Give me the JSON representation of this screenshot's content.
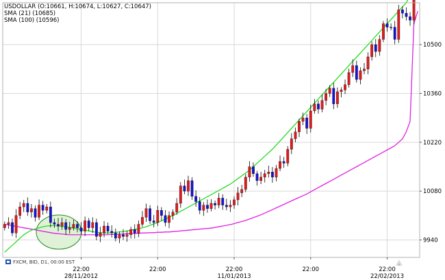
{
  "colors": {
    "up_candle": "#1414d2",
    "down_candle": "#e01b1b",
    "wick": "#000000",
    "sma21": "#22dd22",
    "sma100": "#e020e0",
    "grid": "#d8d8d8",
    "highlight_fill": "#dff2d8",
    "highlight_stroke": "#228822"
  },
  "header": {
    "line1": "USDOLLAR (O:10661, H:10674, L:10627, C:10647)",
    "line2": "SMA (21) (10685)",
    "line3": "SMA (100) (10596)"
  },
  "footer": {
    "text": "FXCM, BID, D1, 00:00 EST",
    "icon_name": "fxcm-logo-icon",
    "corner_icon_name": "chart-logo-icon"
  },
  "chart_data": {
    "type": "candlestick",
    "grid": true,
    "y_axis_position": "right",
    "ylim": [
      9890,
      10620
    ],
    "y_ticks": [
      9940,
      10080,
      10220,
      10360,
      10500
    ],
    "y_tick_labels": [
      "9940",
      "10080",
      "10220",
      "10360",
      "10500"
    ],
    "x_tick_slots": [
      20,
      40,
      60,
      80,
      100
    ],
    "x_tick_labels": [
      [
        "22:00",
        "28/11/2012"
      ],
      [
        "22:00",
        ""
      ],
      [
        "22:00",
        "11/01/2013"
      ],
      [
        "22:00",
        ""
      ],
      [
        "22:00",
        "22/02/2013"
      ]
    ],
    "candles_close": [
      9975,
      9985,
      9990,
      9960,
      10010,
      10035,
      10045,
      10020,
      10030,
      10005,
      10040,
      10025,
      10035,
      9990,
      9985,
      9980,
      9990,
      9970,
      9975,
      9985,
      9975,
      9965,
      9995,
      9975,
      9990,
      9950,
      9960,
      9980,
      9965,
      9960,
      9945,
      9955,
      9950,
      9955,
      9970,
      9960,
      9985,
      10005,
      10030,
      9995,
      9990,
      10025,
      10010,
      9990,
      10010,
      10020,
      10045,
      10095,
      10080,
      10110,
      10065,
      10050,
      10025,
      10040,
      10030,
      10045,
      10040,
      10060,
      10040,
      10035,
      10040,
      10055,
      10075,
      10085,
      10120,
      10150,
      10130,
      10110,
      10120,
      10130,
      10135,
      10120,
      10145,
      10165,
      10160,
      10200,
      10230,
      10250,
      10280,
      10290,
      10260,
      10310,
      10330,
      10315,
      10340,
      10360,
      10375,
      10330,
      10365,
      10370,
      10385,
      10420,
      10440,
      10400,
      10425,
      10430,
      10465,
      10500,
      10480,
      10515,
      10560,
      10550,
      10550,
      10515,
      10600,
      10590,
      10580,
      10570,
      10647
    ],
    "candles_open": [
      9985,
      9990,
      9960,
      10010,
      10035,
      10045,
      10020,
      10030,
      10005,
      10040,
      10025,
      10035,
      9990,
      9985,
      9980,
      9990,
      9970,
      9975,
      9985,
      9975,
      9965,
      9995,
      9975,
      9990,
      9950,
      9960,
      9980,
      9965,
      9960,
      9945,
      9955,
      9950,
      9955,
      9970,
      9960,
      9985,
      10005,
      10030,
      9995,
      9990,
      10025,
      10010,
      9990,
      10010,
      10020,
      10045,
      10095,
      10080,
      10110,
      10065,
      10050,
      10025,
      10040,
      10030,
      10045,
      10040,
      10060,
      10040,
      10035,
      10040,
      10055,
      10075,
      10085,
      10120,
      10150,
      10130,
      10110,
      10120,
      10130,
      10135,
      10120,
      10145,
      10165,
      10160,
      10200,
      10230,
      10250,
      10280,
      10290,
      10260,
      10310,
      10330,
      10315,
      10340,
      10360,
      10375,
      10330,
      10365,
      10370,
      10385,
      10420,
      10440,
      10400,
      10425,
      10430,
      10465,
      10500,
      10480,
      10515,
      10560,
      10550,
      10550,
      10515,
      10600,
      10590,
      10580,
      10570,
      10661,
      10661
    ],
    "sma21": [
      9905,
      9915,
      9925,
      9935,
      9945,
      9955,
      9962,
      9968,
      9972,
      9975,
      9978,
      9980,
      9981,
      9981,
      9980,
      9979,
      9978,
      9976,
      9974,
      9972,
      9970,
      9968,
      9966,
      9964,
      9962,
      9961,
      9960,
      9960,
      9961,
      9962,
      9963,
      9964,
      9966,
      9968,
      9970,
      9972,
      9975,
      9978,
      9982,
      9986,
      9990,
      9995,
      10000,
      10005,
      10010,
      10016,
      10022,
      10028,
      10034,
      10040,
      10046,
      10052,
      10058,
      10064,
      10070,
      10076,
      10082,
      10088,
      10094,
      10100,
      10108,
      10116,
      10124,
      10132,
      10140,
      10150,
      10160,
      10170,
      10180,
      10190,
      10200,
      10212,
      10224,
      10236,
      10248,
      10260,
      10272,
      10284,
      10296,
      10308,
      10320,
      10332,
      10344,
      10356,
      10368,
      10380,
      10392,
      10404,
      10416,
      10428,
      10440,
      10452,
      10464,
      10476,
      10488,
      10500,
      10512,
      10524,
      10536,
      10548,
      10560,
      10572,
      10584,
      10596,
      10608,
      10620,
      10640,
      10660,
      10685
    ],
    "sma100": [
      9985,
      9983,
      9981,
      9979,
      9977,
      9975,
      9973,
      9971,
      9969,
      9967,
      9965,
      9963,
      9961,
      9959,
      9958,
      9957,
      9956,
      9955,
      9955,
      9955,
      9955,
      9955,
      9955,
      9955,
      9955,
      9955,
      9955,
      9955,
      9956,
      9956,
      9957,
      9957,
      9958,
      9958,
      9959,
      9959,
      9960,
      9960,
      9961,
      9961,
      9962,
      9962,
      9963,
      9963,
      9964,
      9965,
      9966,
      9967,
      9968,
      9969,
      9970,
      9971,
      9972,
      9973,
      9974,
      9976,
      9978,
      9980,
      9982,
      9984,
      9987,
      9990,
      9993,
      9996,
      10000,
      10004,
      10008,
      10012,
      10017,
      10022,
      10027,
      10032,
      10037,
      10042,
      10047,
      10052,
      10057,
      10062,
      10067,
      10072,
      10078,
      10084,
      10090,
      10096,
      10102,
      10108,
      10114,
      10120,
      10126,
      10132,
      10138,
      10144,
      10150,
      10156,
      10162,
      10168,
      10174,
      10180,
      10186,
      10192,
      10198,
      10204,
      10210,
      10220,
      10230,
      10250,
      10280,
      10560,
      10596
    ]
  }
}
